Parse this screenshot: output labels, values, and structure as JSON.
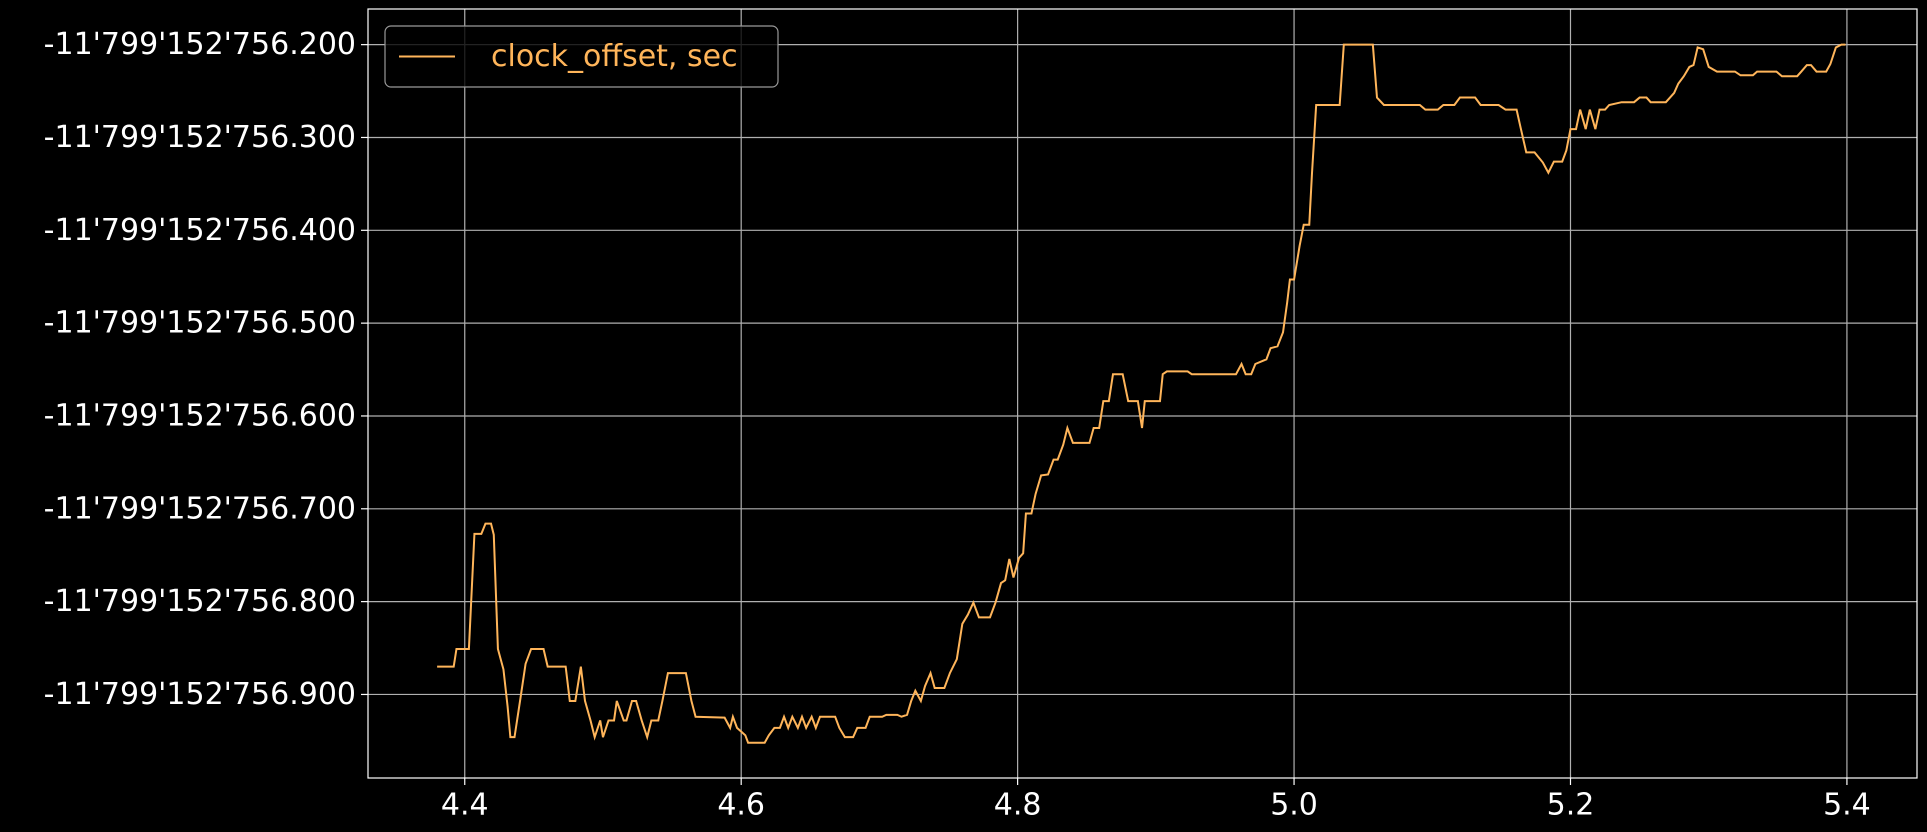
{
  "chart_data": {
    "type": "line",
    "x": [
      4.38,
      4.392,
      4.394,
      4.403,
      4.407,
      4.412,
      4.415,
      4.419,
      4.421,
      4.424,
      4.428,
      4.431,
      4.433,
      4.436,
      4.44,
      4.444,
      4.448,
      4.457,
      4.46,
      4.473,
      4.476,
      4.48,
      4.484,
      4.487,
      4.491,
      4.494,
      4.498,
      4.5,
      4.504,
      4.508,
      4.51,
      4.515,
      4.517,
      4.521,
      4.524,
      4.528,
      4.532,
      4.535,
      4.54,
      4.543,
      4.547,
      4.56,
      4.564,
      4.567,
      4.588,
      4.592,
      4.594,
      4.597,
      4.603,
      4.605,
      4.617,
      4.62,
      4.624,
      4.628,
      4.631,
      4.634,
      4.637,
      4.641,
      4.644,
      4.647,
      4.651,
      4.654,
      4.657,
      4.668,
      4.671,
      4.675,
      4.681,
      4.684,
      4.69,
      4.693,
      4.702,
      4.705,
      4.713,
      4.716,
      4.72,
      4.723,
      4.726,
      4.73,
      4.733,
      4.737,
      4.74,
      4.747,
      4.751,
      4.756,
      4.76,
      4.764,
      4.768,
      4.772,
      4.78,
      4.784,
      4.788,
      4.791,
      4.794,
      4.797,
      4.801,
      4.804,
      4.806,
      4.81,
      4.813,
      4.817,
      4.822,
      4.826,
      4.829,
      4.833,
      4.836,
      4.84,
      4.852,
      4.855,
      4.859,
      4.862,
      4.866,
      4.869,
      4.876,
      4.88,
      4.887,
      4.89,
      4.892,
      4.903,
      4.905,
      4.908,
      4.923,
      4.926,
      4.958,
      4.962,
      4.965,
      4.969,
      4.972,
      4.98,
      4.983,
      4.988,
      4.992,
      4.995,
      4.997,
      5.0,
      5.004,
      5.007,
      5.011,
      5.013,
      5.016,
      5.033,
      5.036,
      5.057,
      5.06,
      5.065,
      5.091,
      5.095,
      5.104,
      5.108,
      5.116,
      5.12,
      5.131,
      5.135,
      5.148,
      5.153,
      5.161,
      5.164,
      5.168,
      5.174,
      5.18,
      5.184,
      5.188,
      5.194,
      5.197,
      5.2,
      5.204,
      5.207,
      5.211,
      5.214,
      5.218,
      5.221,
      5.225,
      5.228,
      5.237,
      5.246,
      5.25,
      5.255,
      5.258,
      5.269,
      5.275,
      5.278,
      5.282,
      5.286,
      5.289,
      5.292,
      5.296,
      5.3,
      5.306,
      5.319,
      5.323,
      5.332,
      5.335,
      5.349,
      5.353,
      5.364,
      5.367,
      5.371,
      5.374,
      5.378,
      5.385,
      5.388,
      5.392,
      5.396,
      5.399
    ],
    "series": [
      {
        "name": "clock_offset, sec",
        "color": "#ffb55a",
        "values": [
          -11799152756.87,
          -11799152756.87,
          -11799152756.851,
          -11799152756.851,
          -11799152756.727,
          -11799152756.727,
          -11799152756.716,
          -11799152756.716,
          -11799152756.728,
          -11799152756.851,
          -11799152756.873,
          -11799152756.913,
          -11799152756.946,
          -11799152756.946,
          -11799152756.907,
          -11799152756.867,
          -11799152756.851,
          -11799152756.851,
          -11799152756.87,
          -11799152756.87,
          -11799152756.907,
          -11799152756.907,
          -11799152756.87,
          -11799152756.907,
          -11799152756.928,
          -11799152756.946,
          -11799152756.928,
          -11799152756.946,
          -11799152756.928,
          -11799152756.928,
          -11799152756.907,
          -11799152756.928,
          -11799152756.928,
          -11799152756.907,
          -11799152756.907,
          -11799152756.928,
          -11799152756.946,
          -11799152756.928,
          -11799152756.928,
          -11799152756.907,
          -11799152756.877,
          -11799152756.877,
          -11799152756.907,
          -11799152756.924,
          -11799152756.925,
          -11799152756.936,
          -11799152756.924,
          -11799152756.936,
          -11799152756.944,
          -11799152756.952,
          -11799152756.952,
          -11799152756.944,
          -11799152756.936,
          -11799152756.936,
          -11799152756.924,
          -11799152756.936,
          -11799152756.924,
          -11799152756.936,
          -11799152756.924,
          -11799152756.936,
          -11799152756.924,
          -11799152756.936,
          -11799152756.924,
          -11799152756.924,
          -11799152756.936,
          -11799152756.946,
          -11799152756.946,
          -11799152756.936,
          -11799152756.936,
          -11799152756.924,
          -11799152756.924,
          -11799152756.922,
          -11799152756.922,
          -11799152756.924,
          -11799152756.922,
          -11799152756.907,
          -11799152756.896,
          -11799152756.907,
          -11799152756.891,
          -11799152756.877,
          -11799152756.893,
          -11799152756.893,
          -11799152756.877,
          -11799152756.862,
          -11799152756.824,
          -11799152756.814,
          -11799152756.801,
          -11799152756.817,
          -11799152756.817,
          -11799152756.801,
          -11799152756.78,
          -11799152756.777,
          -11799152756.754,
          -11799152756.774,
          -11799152756.753,
          -11799152756.748,
          -11799152756.705,
          -11799152756.705,
          -11799152756.684,
          -11799152756.664,
          -11799152756.663,
          -11799152756.647,
          -11799152756.647,
          -11799152756.631,
          -11799152756.613,
          -11799152756.629,
          -11799152756.629,
          -11799152756.613,
          -11799152756.613,
          -11799152756.584,
          -11799152756.584,
          -11799152756.555,
          -11799152756.555,
          -11799152756.584,
          -11799152756.584,
          -11799152756.613,
          -11799152756.584,
          -11799152756.584,
          -11799152756.555,
          -11799152756.552,
          -11799152756.552,
          -11799152756.555,
          -11799152756.555,
          -11799152756.544,
          -11799152756.555,
          -11799152756.555,
          -11799152756.544,
          -11799152756.539,
          -11799152756.527,
          -11799152756.525,
          -11799152756.51,
          -11799152756.478,
          -11799152756.453,
          -11799152756.453,
          -11799152756.417,
          -11799152756.394,
          -11799152756.394,
          -11799152756.338,
          -11799152756.265,
          -11799152756.265,
          -11799152756.2,
          -11799152756.2,
          -11799152756.257,
          -11799152756.265,
          -11799152756.265,
          -11799152756.27,
          -11799152756.27,
          -11799152756.265,
          -11799152756.265,
          -11799152756.257,
          -11799152756.257,
          -11799152756.265,
          -11799152756.265,
          -11799152756.27,
          -11799152756.27,
          -11799152756.29,
          -11799152756.316,
          -11799152756.316,
          -11799152756.327,
          -11799152756.338,
          -11799152756.326,
          -11799152756.326,
          -11799152756.314,
          -11799152756.291,
          -11799152756.291,
          -11799152756.27,
          -11799152756.291,
          -11799152756.27,
          -11799152756.291,
          -11799152756.27,
          -11799152756.27,
          -11799152756.265,
          -11799152756.262,
          -11799152756.262,
          -11799152756.257,
          -11799152756.257,
          -11799152756.262,
          -11799152756.262,
          -11799152756.252,
          -11799152756.242,
          -11799152756.234,
          -11799152756.224,
          -11799152756.222,
          -11799152756.203,
          -11799152756.205,
          -11799152756.224,
          -11799152756.229,
          -11799152756.229,
          -11799152756.233,
          -11799152756.233,
          -11799152756.229,
          -11799152756.229,
          -11799152756.234,
          -11799152756.234,
          -11799152756.229,
          -11799152756.222,
          -11799152756.222,
          -11799152756.229,
          -11799152756.229,
          -11799152756.221,
          -11799152756.203,
          -11799152756.2,
          -11799152756.2
        ]
      }
    ],
    "xlim": [
      4.33,
      5.4507
    ],
    "xticks": [
      4.4,
      4.6,
      4.8,
      {
        "value": 5,
        "label": "5.0"
      },
      5.2,
      5.4
    ],
    "ylim": [
      -11799152756.99,
      -11799152756.1616
    ],
    "yticks": [
      {
        "value": -11799152756.2,
        "label": "-11'799'152'756.200"
      },
      {
        "value": -11799152756.3,
        "label": "-11'799'152'756.300"
      },
      {
        "value": -11799152756.4,
        "label": "-11'799'152'756.400"
      },
      {
        "value": -11799152756.5,
        "label": "-11'799'152'756.500"
      },
      {
        "value": -11799152756.6,
        "label": "-11'799'152'756.600"
      },
      {
        "value": -11799152756.7,
        "label": "-11'799'152'756.700"
      },
      {
        "value": -11799152756.8,
        "label": "-11'799'152'756.800"
      },
      {
        "value": -11799152756.9,
        "label": "-11'799'152'756.900"
      }
    ],
    "grid": true,
    "legend": "upper left"
  }
}
